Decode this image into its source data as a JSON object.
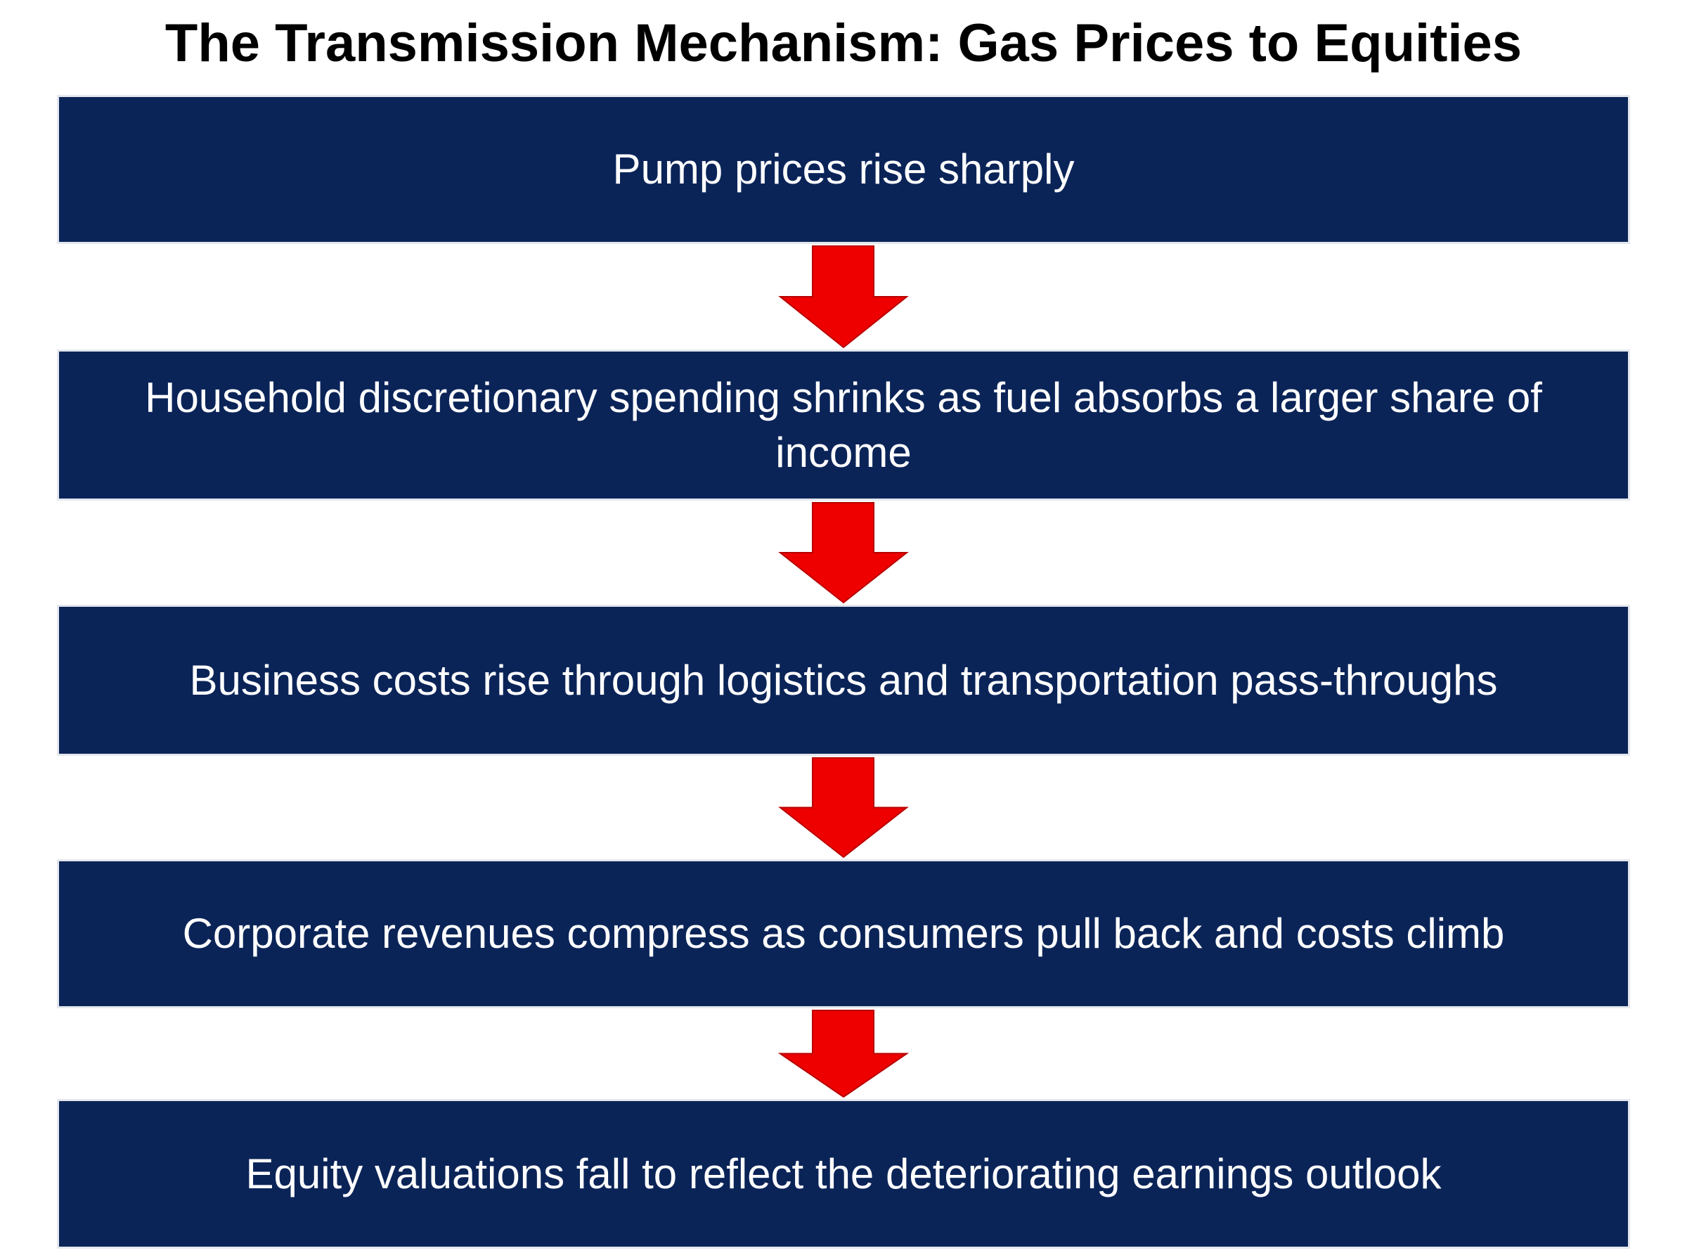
{
  "title": "The Transmission Mechanism: Gas Prices to Equities",
  "steps": [
    "Pump prices rise sharply",
    "Household discretionary spending shrinks as fuel absorbs a larger share of income",
    "Business costs rise through logistics and transportation pass-throughs",
    "Corporate revenues compress as consumers pull back and costs climb",
    "Equity valuations fall to reflect the deteriorating earnings outlook"
  ]
}
